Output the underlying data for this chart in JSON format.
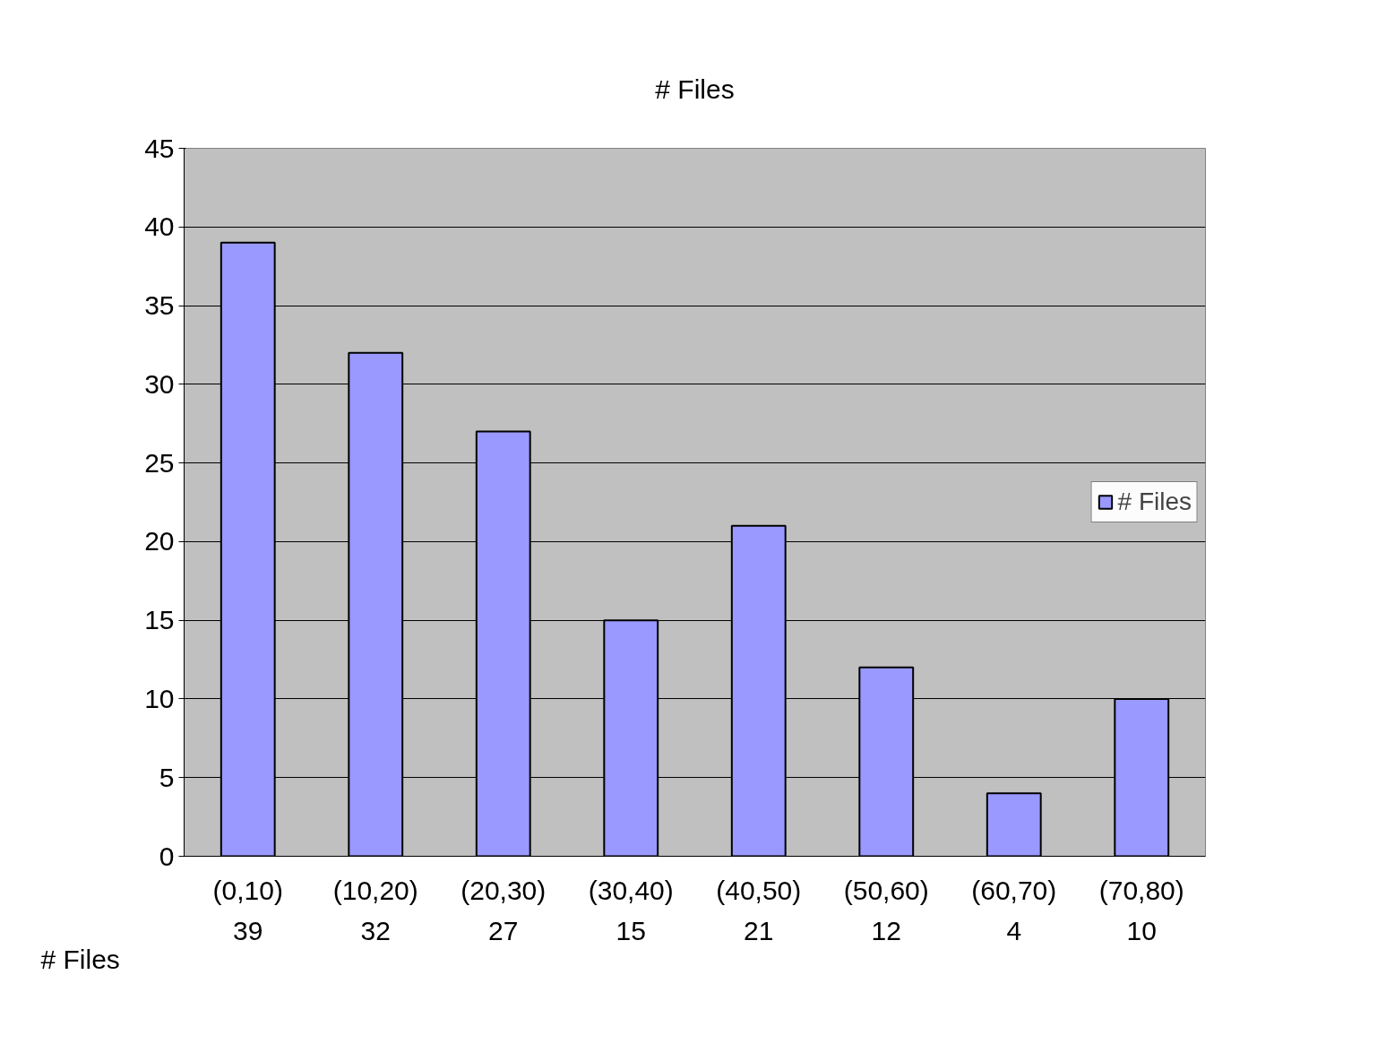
{
  "chart_data": {
    "type": "bar",
    "title": "# Files",
    "categories": [
      "(0,10)",
      "(10,20)",
      "(20,30)",
      "(30,40)",
      "(40,50)",
      "(50,60)",
      "(60,70)",
      "(70,80)"
    ],
    "series": [
      {
        "name": "# Files",
        "color": "#9999ff",
        "values": [
          39,
          32,
          27,
          15,
          21,
          12,
          4,
          10
        ]
      }
    ],
    "ylim": [
      0,
      45
    ],
    "yticks": [
      0,
      5,
      10,
      15,
      20,
      25,
      30,
      35,
      40,
      45
    ],
    "grid": "y",
    "legend": "right",
    "data_labels": true
  }
}
